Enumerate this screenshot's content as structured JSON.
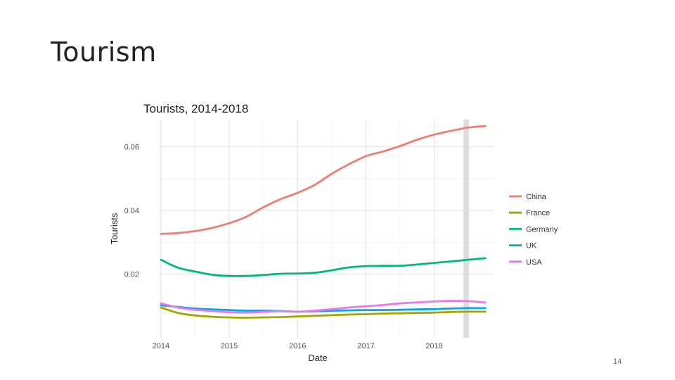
{
  "slide": {
    "title": "Tourism",
    "number": "14"
  },
  "chart_data": {
    "type": "line",
    "title": "Tourists, 2014-2018",
    "xlabel": "Date",
    "ylabel": "Tourists",
    "xlim": [
      2013.97,
      2018.87
    ],
    "ylim": [
      0.0,
      0.0685
    ],
    "xticks": [
      2014,
      2015,
      2016,
      2017,
      2018
    ],
    "xtick_labels": [
      "2014",
      "2015",
      "2016",
      "2017",
      "2018"
    ],
    "yticks": [
      0.02,
      0.04,
      0.06
    ],
    "ytick_labels": [
      "0.02",
      "0.04",
      "0.06"
    ],
    "grid": true,
    "highlight_x": 2018.47,
    "legend_position": "right",
    "x": [
      2014.0,
      2014.25,
      2014.5,
      2014.75,
      2015.0,
      2015.25,
      2015.5,
      2015.75,
      2016.0,
      2016.25,
      2016.5,
      2016.75,
      2017.0,
      2017.25,
      2017.5,
      2017.75,
      2018.0,
      2018.25,
      2018.5,
      2018.75
    ],
    "series": [
      {
        "name": "China",
        "color": "#f07b72",
        "values": [
          0.0326,
          0.0329,
          0.0335,
          0.0345,
          0.036,
          0.038,
          0.041,
          0.0435,
          0.0455,
          0.048,
          0.0515,
          0.0545,
          0.057,
          0.0585,
          0.0602,
          0.0622,
          0.0638,
          0.065,
          0.066,
          0.0665
        ]
      },
      {
        "name": "France",
        "color": "#a3a500",
        "values": [
          0.0095,
          0.0078,
          0.007,
          0.0066,
          0.0064,
          0.0063,
          0.0064,
          0.0065,
          0.0067,
          0.0069,
          0.0071,
          0.0073,
          0.0074,
          0.0076,
          0.0077,
          0.0078,
          0.0079,
          0.0081,
          0.0082,
          0.0082
        ]
      },
      {
        "name": "Germany",
        "color": "#00ba7c",
        "values": [
          0.0245,
          0.022,
          0.0208,
          0.0198,
          0.0194,
          0.0194,
          0.0197,
          0.0201,
          0.0202,
          0.0204,
          0.0212,
          0.0221,
          0.0225,
          0.0226,
          0.0226,
          0.023,
          0.0235,
          0.024,
          0.0245,
          0.025
        ]
      },
      {
        "name": "UK",
        "color": "#00a9e6",
        "values": [
          0.0102,
          0.0097,
          0.0092,
          0.0089,
          0.0087,
          0.0085,
          0.0085,
          0.0084,
          0.0082,
          0.0083,
          0.0085,
          0.0086,
          0.0087,
          0.0087,
          0.0088,
          0.0089,
          0.009,
          0.0092,
          0.0093,
          0.0093
        ]
      },
      {
        "name": "USA",
        "color": "#e77ae8",
        "values": [
          0.0108,
          0.0095,
          0.0088,
          0.0084,
          0.008,
          0.0079,
          0.0081,
          0.0083,
          0.0082,
          0.0085,
          0.009,
          0.0095,
          0.0099,
          0.0103,
          0.0108,
          0.0111,
          0.0114,
          0.0116,
          0.0115,
          0.0111
        ]
      }
    ]
  }
}
